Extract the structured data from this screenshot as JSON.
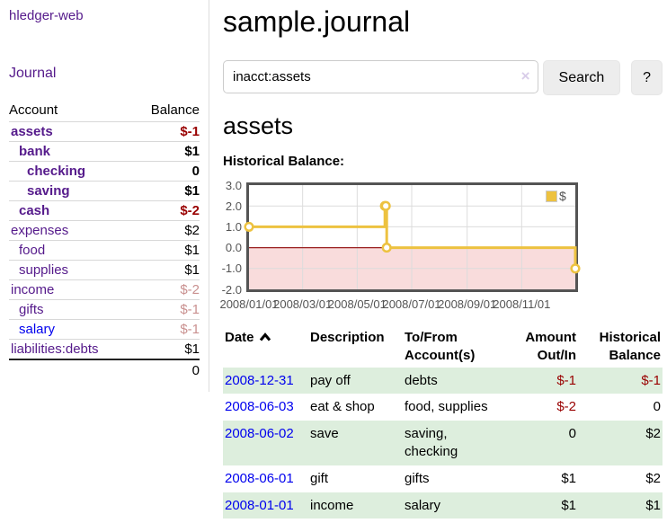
{
  "app": {
    "title": "hledger-web"
  },
  "sidebar": {
    "journal_link": "Journal",
    "accounts_header": {
      "account": "Account",
      "balance": "Balance"
    },
    "accounts": [
      {
        "name": "assets",
        "balance": "$-1",
        "depth": 1,
        "bold": true,
        "neg": "strong"
      },
      {
        "name": "bank",
        "balance": "$1",
        "depth": 2,
        "bold": true,
        "neg": "none"
      },
      {
        "name": "checking",
        "balance": "0",
        "depth": 3,
        "bold": true,
        "neg": "none"
      },
      {
        "name": "saving",
        "balance": "$1",
        "depth": 3,
        "bold": true,
        "neg": "none"
      },
      {
        "name": "cash",
        "balance": "$-2",
        "depth": 2,
        "bold": true,
        "neg": "strong"
      },
      {
        "name": "expenses",
        "balance": "$2",
        "depth": 1,
        "bold": false,
        "neg": "none"
      },
      {
        "name": "food",
        "balance": "$1",
        "depth": 2,
        "bold": false,
        "neg": "none"
      },
      {
        "name": "supplies",
        "balance": "$1",
        "depth": 2,
        "bold": false,
        "neg": "none"
      },
      {
        "name": "income",
        "balance": "$-2",
        "depth": 1,
        "bold": false,
        "neg": "faded"
      },
      {
        "name": "gifts",
        "balance": "$-1",
        "depth": 2,
        "bold": false,
        "neg": "faded"
      },
      {
        "name": "salary",
        "balance": "$-1",
        "depth": 2,
        "bold": false,
        "neg": "faded",
        "link_color": "blue"
      },
      {
        "name": "liabilities:debts",
        "balance": "$1",
        "depth": 1,
        "bold": false,
        "neg": "none"
      }
    ],
    "total": "0"
  },
  "header": {
    "title": "sample.journal"
  },
  "search": {
    "value": "inacct:assets",
    "clear_icon": "×",
    "button_label": "Search",
    "help_label": "?"
  },
  "account_page": {
    "heading": "assets",
    "chart_label": "Historical Balance:"
  },
  "chart_data": {
    "type": "line",
    "title": "Historical Balance",
    "steps": true,
    "series": [
      {
        "name": "$",
        "color": "#edc240",
        "points": [
          {
            "date": "2008-01-01",
            "value": 1
          },
          {
            "date": "2008-06-01",
            "value": 2
          },
          {
            "date": "2008-06-02",
            "value": 2
          },
          {
            "date": "2008-06-03",
            "value": 0
          },
          {
            "date": "2008-12-31",
            "value": -1
          }
        ]
      }
    ],
    "ylim": [
      -2,
      3
    ],
    "yticks": [
      {
        "label": "3.0",
        "value": 3
      },
      {
        "label": "2.0",
        "value": 2
      },
      {
        "label": "1.0",
        "value": 1
      },
      {
        "label": "0.0",
        "value": 0
      },
      {
        "label": "-1.0",
        "value": -1
      },
      {
        "label": "-2.0",
        "value": -2
      }
    ],
    "xticks": [
      {
        "label": "2008/01/01"
      },
      {
        "label": "2008/03/01"
      },
      {
        "label": "2008/05/01"
      },
      {
        "label": "2008/07/01"
      },
      {
        "label": "2008/09/01"
      },
      {
        "label": "2008/11/01"
      }
    ],
    "legend": "$",
    "legend_position": "top-right",
    "grid": true,
    "negative_region_fill": "#f9dcdc",
    "zero_line_color": "#991f1f",
    "gridline_color": "#dcdcdc",
    "axis_text_color": "#545454"
  },
  "register_table": {
    "headers": [
      {
        "label": "Date",
        "sortable": true,
        "sort_dir": "asc"
      },
      {
        "label": "Description"
      },
      {
        "label": "To/From Account(s)"
      },
      {
        "label": "Amount Out/In"
      },
      {
        "label": "Historical Balance"
      }
    ],
    "rows": [
      {
        "date": "2008-12-31",
        "description": "pay off",
        "accounts": "debts",
        "amount": "$-1",
        "amount_negative": true,
        "balance": "$-1",
        "balance_negative": true
      },
      {
        "date": "2008-06-03",
        "description": "eat & shop",
        "accounts": "food, supplies",
        "amount": "$-2",
        "amount_negative": true,
        "balance": "0",
        "balance_negative": false
      },
      {
        "date": "2008-06-02",
        "description": "save",
        "accounts": "saving, checking",
        "amount": "0",
        "amount_negative": false,
        "balance": "$2",
        "balance_negative": false
      },
      {
        "date": "2008-06-01",
        "description": "gift",
        "accounts": "gifts",
        "amount": "$1",
        "amount_negative": false,
        "balance": "$2",
        "balance_negative": false
      },
      {
        "date": "2008-01-01",
        "description": "income",
        "accounts": "salary",
        "amount": "$1",
        "amount_negative": false,
        "balance": "$1",
        "balance_negative": false
      }
    ]
  },
  "colors": {
    "link_purple": "#551a8b",
    "link_blue": "#0000ee",
    "negative_red": "#990000",
    "negative_faded": "#c9908f",
    "row_green": "#ddeedd",
    "chart_gold": "#edc240"
  }
}
